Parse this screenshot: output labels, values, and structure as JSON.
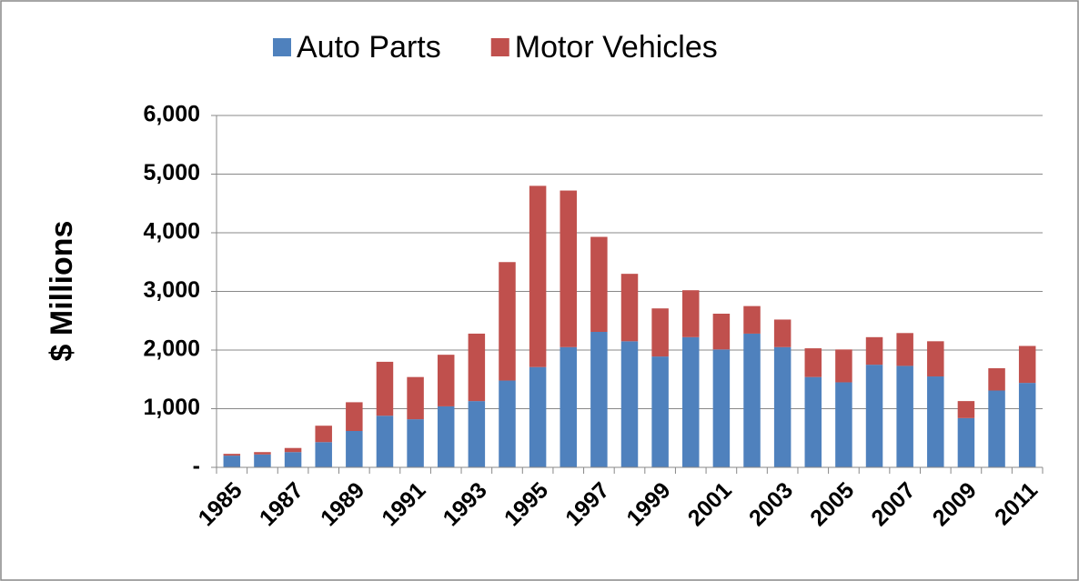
{
  "chart_data": {
    "type": "stacked_bar",
    "y_label": "$ Millions",
    "categories": [
      "1985",
      null,
      "1987",
      null,
      "1989",
      null,
      "1991",
      null,
      "1993",
      null,
      "1995",
      null,
      "1997",
      null,
      "1999",
      null,
      "2001",
      null,
      "2003",
      null,
      "2005",
      null,
      "2007",
      null,
      "2009",
      null,
      "2011"
    ],
    "series": [
      {
        "name": "Auto Parts",
        "color": "#4f81bd",
        "values": [
          200,
          220,
          260,
          430,
          620,
          880,
          820,
          1040,
          1130,
          1480,
          1710,
          2050,
          2310,
          2150,
          1890,
          2220,
          2010,
          2280,
          2050,
          1540,
          1450,
          1750,
          1730,
          1550,
          840,
          1310,
          1440
        ]
      },
      {
        "name": "Motor Vehicles",
        "color": "#c0504d",
        "values": [
          30,
          40,
          70,
          280,
          490,
          920,
          720,
          880,
          1150,
          2020,
          3090,
          2670,
          1620,
          1150,
          820,
          800,
          610,
          470,
          470,
          490,
          560,
          470,
          560,
          600,
          290,
          380,
          630
        ]
      }
    ],
    "ylim": [
      0,
      6000
    ],
    "yticks": [
      {
        "value": 0,
        "label": "-"
      },
      {
        "value": 1000,
        "label": "1,000"
      },
      {
        "value": 2000,
        "label": "2,000"
      },
      {
        "value": 3000,
        "label": "3,000"
      },
      {
        "value": 4000,
        "label": "4,000"
      },
      {
        "value": 5000,
        "label": "5,000"
      },
      {
        "value": 6000,
        "label": "6,000"
      }
    ],
    "grid": true,
    "legend": "top"
  }
}
